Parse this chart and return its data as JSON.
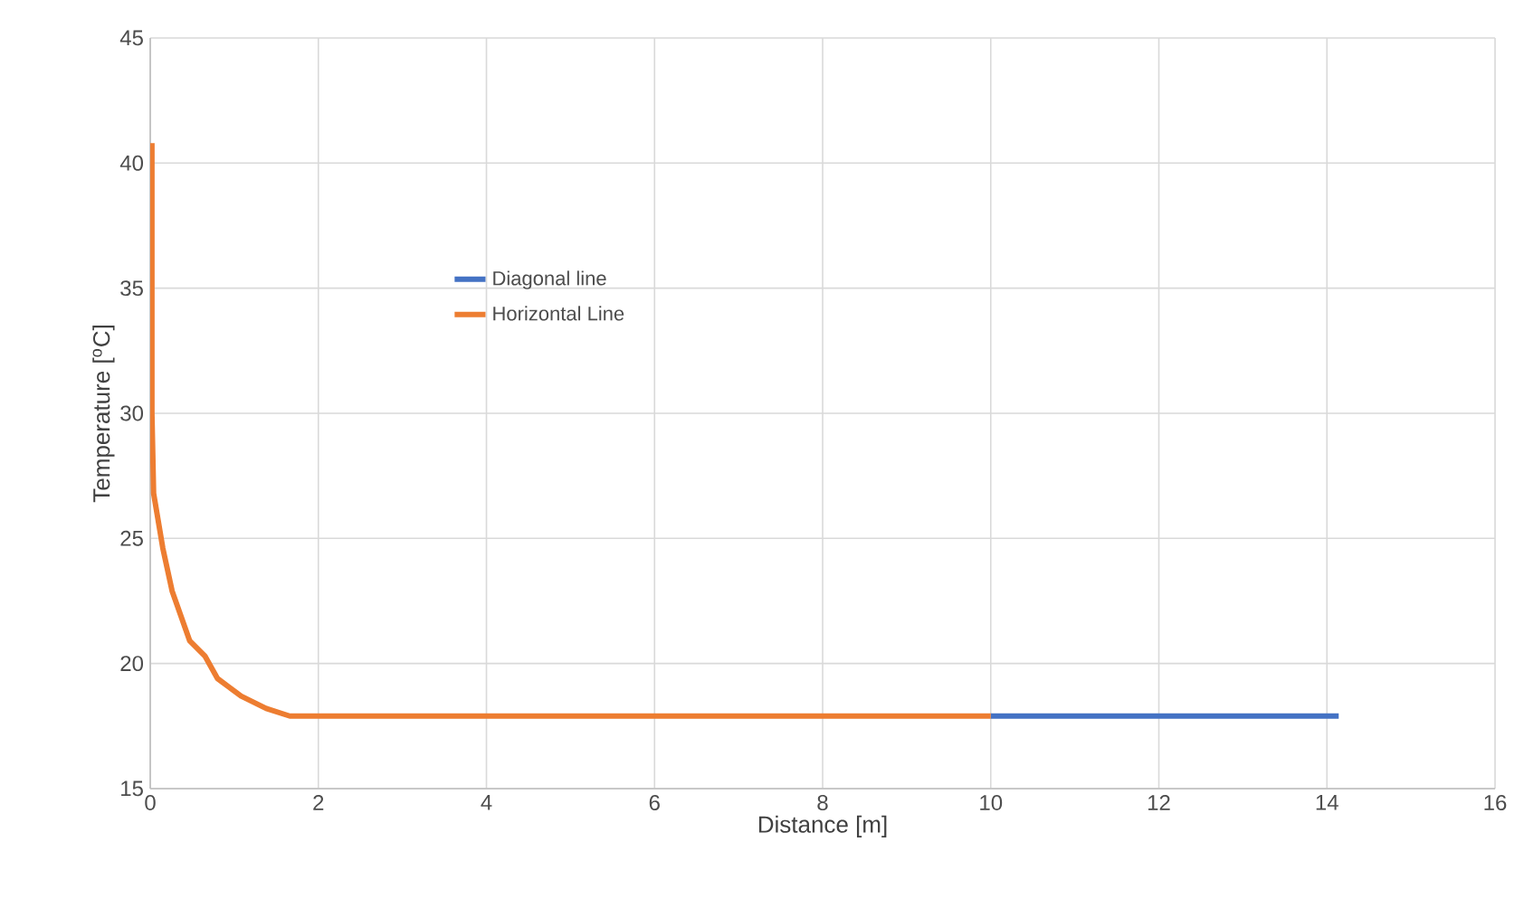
{
  "chart_data": {
    "type": "line",
    "xlabel": "Distance [m]",
    "ylabel": "Temperature [$^{o}$C]",
    "xlim": [
      0,
      16
    ],
    "xticks": [
      0,
      2,
      4,
      6,
      8,
      10,
      12,
      14,
      16
    ],
    "ylim": [
      15,
      45
    ],
    "yticks": [
      15,
      20,
      25,
      30,
      35,
      40,
      45
    ],
    "grid": true,
    "legend": "left",
    "marker": "none",
    "line_style": "solid",
    "series": [
      {
        "name": "Diagonal line",
        "color": "#4472c4",
        "x": [
          10,
          14.14
        ],
        "values": [
          17.9,
          17.9
        ]
      },
      {
        "name": "Horizontal Line",
        "color": "#ed7d31",
        "x": [
          0.02,
          0.02,
          0.04,
          0.15,
          0.26,
          0.47,
          0.65,
          0.8,
          1.08,
          1.38,
          1.66,
          10
        ],
        "values": [
          40.8,
          30,
          26.8,
          24.6,
          22.9,
          20.9,
          20.3,
          19.4,
          18.7,
          18.2,
          17.9,
          17.9
        ]
      }
    ]
  }
}
